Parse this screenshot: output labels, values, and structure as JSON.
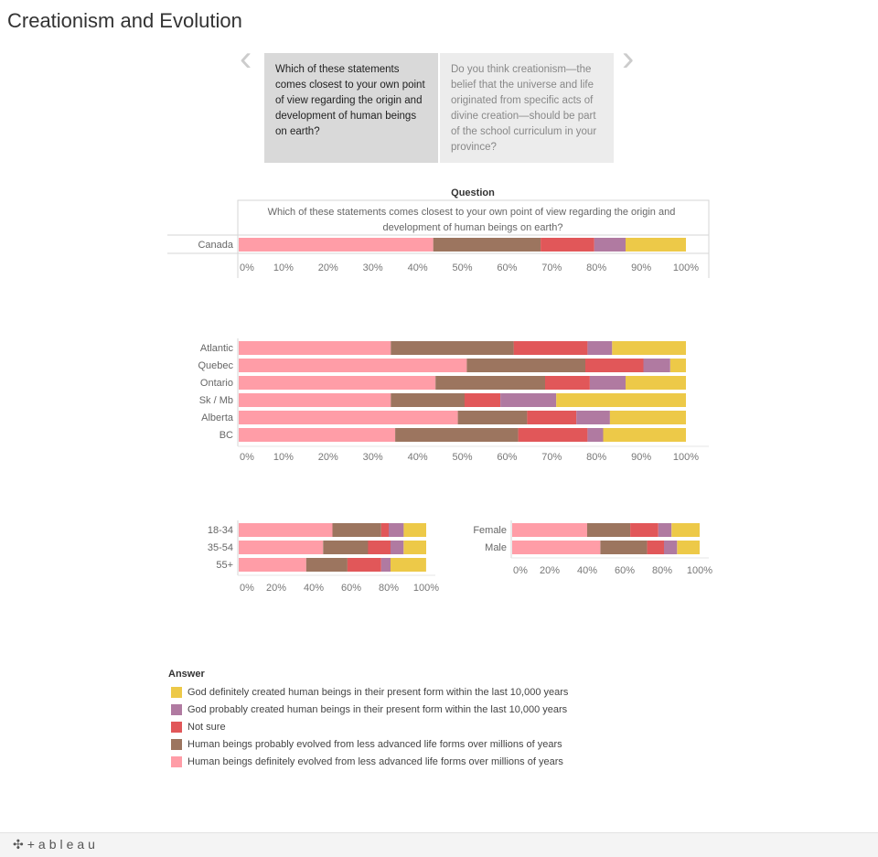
{
  "page": {
    "title": "Creationism and Evolution"
  },
  "story": {
    "prev_icon": "chevron-left-icon",
    "next_icon": "chevron-right-icon",
    "cards": [
      {
        "text": "Which of these statements comes closest to your own point of view regarding the origin and development of human beings on earth?"
      },
      {
        "text": "Do you think creationism—the belief that the universe and life originated from specific acts of divine creation—should be part of the school curriculum in your province?"
      }
    ]
  },
  "brand": {
    "logo_text": "+ableau",
    "logo_icon": "tableau-cross-icon"
  },
  "chart_data": [
    {
      "type": "bar",
      "stacked": true,
      "orientation": "horizontal",
      "header": "Question",
      "column_label": "Which of these statements comes closest to your own point of view regarding the origin and development of human beings on earth?",
      "categories": [
        "Canada"
      ],
      "series": [
        {
          "name": "Human beings definitely evolved from less advanced life forms over millions of years",
          "values": [
            43.5
          ]
        },
        {
          "name": "Human beings probably evolved from less advanced life forms over millions of years",
          "values": [
            24
          ]
        },
        {
          "name": "Not sure",
          "values": [
            12
          ]
        },
        {
          "name": "God probably created human beings in their present form within the last 10,000 years",
          "values": [
            7
          ]
        },
        {
          "name": "God definitely created human beings in their present form within the last 10,000 years",
          "values": [
            13.5
          ]
        }
      ],
      "xlim": [
        0,
        100
      ],
      "ticks": [
        "0%",
        "10%",
        "20%",
        "30%",
        "40%",
        "50%",
        "60%",
        "70%",
        "80%",
        "90%",
        "100%"
      ]
    },
    {
      "type": "bar",
      "stacked": true,
      "orientation": "horizontal",
      "categories": [
        "Atlantic",
        "Quebec",
        "Ontario",
        "Sk / Mb",
        "Alberta",
        "BC"
      ],
      "series": [
        {
          "name": "Human beings definitely evolved from less advanced life forms over millions of years",
          "values": [
            34,
            51,
            44,
            34,
            49,
            35
          ]
        },
        {
          "name": "Human beings probably evolved from less advanced life forms over millions of years",
          "values": [
            27.5,
            26.5,
            24.5,
            16.5,
            15.5,
            27.5
          ]
        },
        {
          "name": "Not sure",
          "values": [
            16.5,
            13,
            10,
            8,
            11,
            15.5
          ]
        },
        {
          "name": "God probably created human beings in their present form within the last 10,000 years",
          "values": [
            5.5,
            6,
            8,
            12.5,
            7.5,
            3.5
          ]
        },
        {
          "name": "God definitely created human beings in their present form within the last 10,000 years",
          "values": [
            16.5,
            3.5,
            13.5,
            29,
            17,
            18.5
          ]
        }
      ],
      "xlim": [
        0,
        100
      ],
      "ticks": [
        "0%",
        "10%",
        "20%",
        "30%",
        "40%",
        "50%",
        "60%",
        "70%",
        "80%",
        "90%",
        "100%"
      ]
    },
    {
      "type": "bar",
      "stacked": true,
      "orientation": "horizontal",
      "categories": [
        "18-34",
        "35-54",
        "55+"
      ],
      "series": [
        {
          "name": "Human beings definitely evolved from less advanced life forms over millions of years",
          "values": [
            50,
            45,
            36
          ]
        },
        {
          "name": "Human beings probably evolved from less advanced life forms over millions of years",
          "values": [
            26,
            24,
            22
          ]
        },
        {
          "name": "Not sure",
          "values": [
            4,
            12,
            18
          ]
        },
        {
          "name": "God probably created human beings in their present form within the last 10,000 years",
          "values": [
            8,
            7,
            5
          ]
        },
        {
          "name": "God definitely created human beings in their present form within the last 10,000 years",
          "values": [
            12,
            12,
            19
          ]
        }
      ],
      "xlim": [
        0,
        100
      ],
      "ticks": [
        "0%",
        "20%",
        "40%",
        "60%",
        "80%",
        "100%"
      ]
    },
    {
      "type": "bar",
      "stacked": true,
      "orientation": "horizontal",
      "categories": [
        "Female",
        "Male"
      ],
      "series": [
        {
          "name": "Human beings definitely evolved from less advanced life forms over millions of years",
          "values": [
            40,
            47
          ]
        },
        {
          "name": "Human beings probably evolved from less advanced life forms over millions of years",
          "values": [
            23,
            25
          ]
        },
        {
          "name": "Not sure",
          "values": [
            15,
            9
          ]
        },
        {
          "name": "God probably created human beings in their present form within the last 10,000 years",
          "values": [
            7,
            7
          ]
        },
        {
          "name": "God definitely created human beings in their present form within the last 10,000 years",
          "values": [
            15,
            12
          ]
        }
      ],
      "xlim": [
        0,
        100
      ],
      "ticks": [
        "0%",
        "20%",
        "40%",
        "60%",
        "80%",
        "100%"
      ]
    }
  ],
  "legend": {
    "title": "Answer",
    "items": [
      {
        "label": "God definitely created human beings in their present form within the last 10,000 years",
        "color": "#edc948"
      },
      {
        "label": "God probably created human beings in their present form within the last 10,000 years",
        "color": "#b07aa1"
      },
      {
        "label": "Not sure",
        "color": "#e15759"
      },
      {
        "label": "Human beings probably evolved from less advanced life forms over millions of years",
        "color": "#9c755f"
      },
      {
        "label": "Human beings definitely evolved from less advanced life forms over millions of years",
        "color": "#ff9da7"
      }
    ]
  },
  "series_colors": [
    "#ff9da7",
    "#9c755f",
    "#e15759",
    "#b07aa1",
    "#edc948"
  ]
}
